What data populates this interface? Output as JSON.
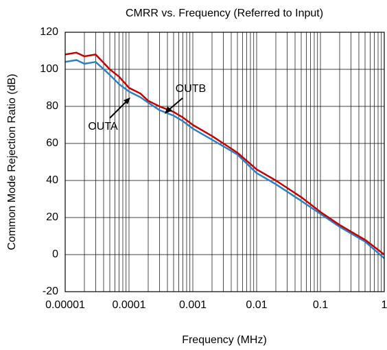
{
  "chart_data": {
    "type": "line",
    "title": "CMRR vs. Frequency (Referred to Input)",
    "x_label": "Frequency (MHz)",
    "y_label": "Common Mode Rejection Ratio (dB)",
    "x_scale": "log",
    "grid": true,
    "x": [
      1e-05,
      1.5e-05,
      2e-05,
      3e-05,
      5e-05,
      7e-05,
      0.0001,
      0.00015,
      0.0002,
      0.0003,
      0.0005,
      0.0007,
      0.001,
      0.002,
      0.005,
      0.01,
      0.02,
      0.05,
      0.1,
      0.2,
      0.5,
      1
    ],
    "series": [
      {
        "name": "OUTA",
        "color": "#2f7fc1",
        "values": [
          104,
          105,
          103,
          104,
          97,
          92,
          88,
          85,
          82,
          78,
          75,
          72,
          68,
          62,
          54,
          44,
          38,
          29,
          22,
          15,
          7,
          -2
        ]
      },
      {
        "name": "OUTB",
        "color": "#c00000",
        "values": [
          108,
          109,
          107,
          108,
          100,
          96,
          90,
          87,
          83,
          80,
          77,
          74,
          70,
          64,
          55,
          46,
          40,
          31,
          23,
          16,
          8,
          0
        ]
      }
    ],
    "xlim": [
      1e-05,
      1
    ],
    "xticks": [
      1e-05,
      0.0001,
      0.001,
      0.01,
      0.1,
      1
    ],
    "ylim": [
      -20,
      120
    ],
    "yticks": [
      -20,
      0,
      20,
      40,
      60,
      80,
      100,
      120
    ]
  }
}
